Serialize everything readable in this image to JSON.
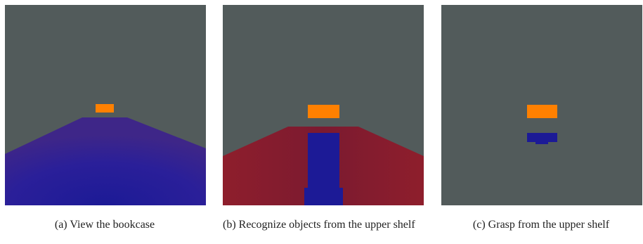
{
  "figure": {
    "panels": [
      {
        "caption": "(a) View the bookcase"
      },
      {
        "caption": "(b) Recognize objects from the upper shelf"
      },
      {
        "caption": "(c) Grasp from the upper shelf"
      }
    ]
  }
}
